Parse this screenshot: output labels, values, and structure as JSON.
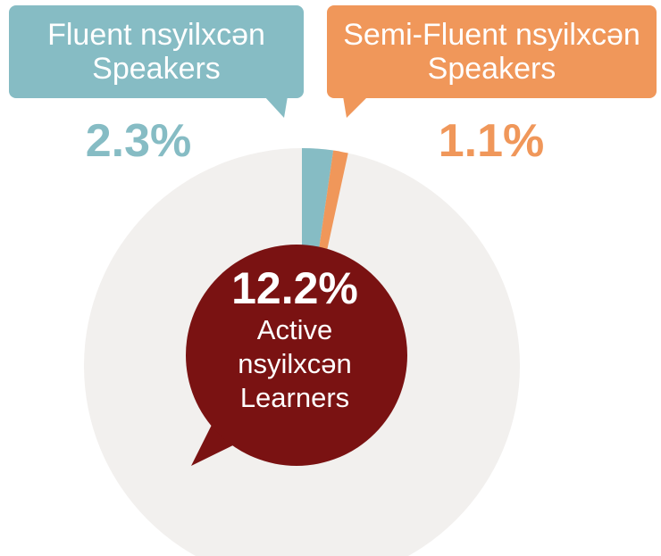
{
  "chart_data": {
    "type": "pie",
    "categories": [
      "Fluent nsyilxcən Speakers",
      "Semi-Fluent nsyilxcən Speakers"
    ],
    "values": [
      2.3,
      1.1
    ],
    "value_labels": [
      "2.3%",
      "1.1%"
    ],
    "colors": [
      "#86bcc4",
      "#f0975a"
    ],
    "highlight": {
      "value": 12.2,
      "value_label": "12.2%",
      "label": "Active nsyilxcən Learners",
      "color": "#7a1212"
    }
  }
}
